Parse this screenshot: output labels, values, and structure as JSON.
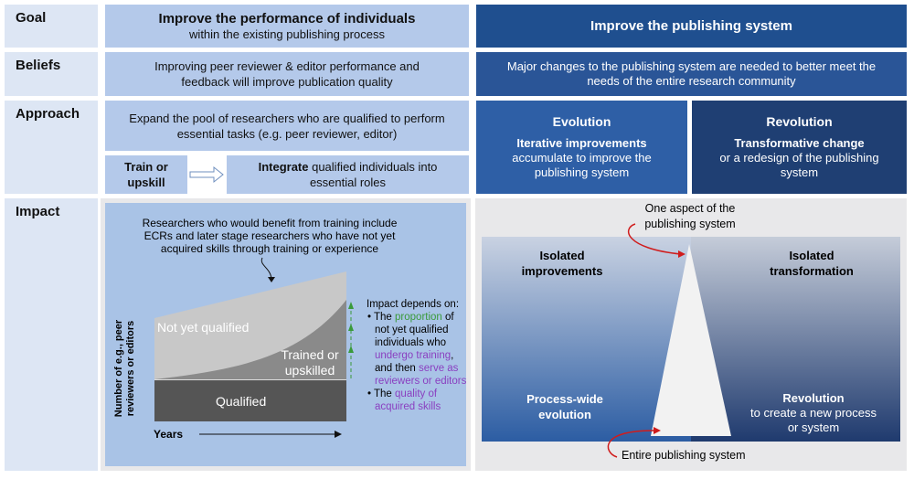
{
  "rows": {
    "goal": "Goal",
    "beliefs": "Beliefs",
    "approach": "Approach",
    "impact": "Impact"
  },
  "goal": {
    "left_title": "Improve the performance of individuals",
    "left_sub": "within the existing publishing process",
    "right_title": "Improve the publishing system"
  },
  "beliefs": {
    "left": "Improving peer reviewer & editor performance and feedback will improve publication quality",
    "right": "Major changes to the publishing system are needed to better meet the needs of the entire research community"
  },
  "approach": {
    "left": "Expand the pool of researchers who are qualified to perform essential tasks (e.g. peer reviewer, editor)",
    "train": "Train or upskill",
    "integrate_bold": "Integrate",
    "integrate_rest": " qualified individuals into essential roles",
    "evolution": {
      "title": "Evolution",
      "bold": "Iterative improvements",
      "rest": "accumulate to improve the publishing system"
    },
    "revolution": {
      "title": "Revolution",
      "bold": "Transformative change",
      "rest": "or a redesign of the publishing system"
    }
  },
  "impact_left": {
    "note": "Researchers who would benefit from training include ECRs and later stage researchers who have not yet acquired skills through training or experience",
    "not_yet": "Not yet qualified",
    "trained": "Trained or upskilled",
    "qualified": "Qualified",
    "ylabel": "Number of e.g., peer reviewers or editors",
    "xlabel": "Years",
    "depends": "Impact depends on:",
    "b1a": "The ",
    "b1b": "proportion",
    "b1c": " of not yet qualified individuals who ",
    "b1d": "undergo training",
    "b1e": ", and then ",
    "b1f": "serve as reviewers or editors",
    "b2a": "The ",
    "b2b": "quality of acquired skills"
  },
  "impact_right": {
    "top": "One aspect of the publishing system",
    "bottom": "Entire publishing system",
    "tl": "Isolated improvements",
    "tr": "Isolated transformation",
    "bl": "Process-wide evolution",
    "br_title": "Revolution",
    "br_rest": "to create a new process or system"
  },
  "colors": {
    "light_blue": "#b4c9ea",
    "dark_blue": "#1f4f8f",
    "green": "#3a9a3a",
    "purple": "#8a3fc0",
    "red": "#d01c1c"
  }
}
